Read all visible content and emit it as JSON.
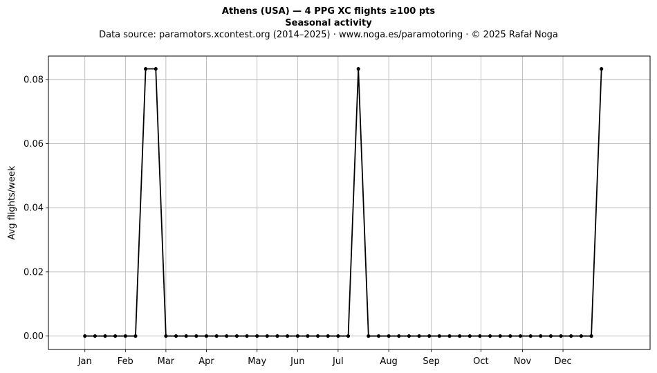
{
  "chart_data": {
    "type": "line",
    "title": "Athens (USA)  —  4 PPG XC flights ≥100 pts",
    "subtitle": "Seasonal activity",
    "source_note": "Data source: paramotors.xcontest.org (2014–2025)  ·  www.noga.es/paramotoring  ·  © 2025 Rafał Noga",
    "xlabel": "",
    "ylabel": "Avg flights/week",
    "x_range": [
      -3.6,
      55.8
    ],
    "ylim": [
      -0.0042,
      0.0873
    ],
    "grid": true,
    "legend": "none",
    "line_color": "#000000",
    "x_ticks": [
      {
        "label": "Jan",
        "x": 0
      },
      {
        "label": "Feb",
        "x": 4
      },
      {
        "label": "Mar",
        "x": 8
      },
      {
        "label": "Apr",
        "x": 12
      },
      {
        "label": "May",
        "x": 17
      },
      {
        "label": "Jun",
        "x": 21
      },
      {
        "label": "Jul",
        "x": 25
      },
      {
        "label": "Aug",
        "x": 30
      },
      {
        "label": "Sep",
        "x": 34.2
      },
      {
        "label": "Oct",
        "x": 39.1
      },
      {
        "label": "Nov",
        "x": 43.2
      },
      {
        "label": "Dec",
        "x": 47.2
      }
    ],
    "y_ticks": [
      {
        "label": "0.00",
        "value": 0
      },
      {
        "label": "0.02",
        "value": 0.02
      },
      {
        "label": "0.04",
        "value": 0.04
      },
      {
        "label": "0.06",
        "value": 0.06
      },
      {
        "label": "0.08",
        "value": 0.08
      }
    ],
    "series": [
      {
        "values": [
          0,
          0,
          0,
          0,
          0,
          0,
          0.0833,
          0.0833,
          0,
          0,
          0,
          0,
          0,
          0,
          0,
          0,
          0,
          0,
          0,
          0,
          0,
          0,
          0,
          0,
          0,
          0,
          0,
          0.0833,
          0,
          0,
          0,
          0,
          0,
          0,
          0,
          0,
          0,
          0,
          0,
          0,
          0,
          0,
          0,
          0,
          0,
          0,
          0,
          0,
          0,
          0,
          0,
          0.0833
        ]
      }
    ]
  }
}
